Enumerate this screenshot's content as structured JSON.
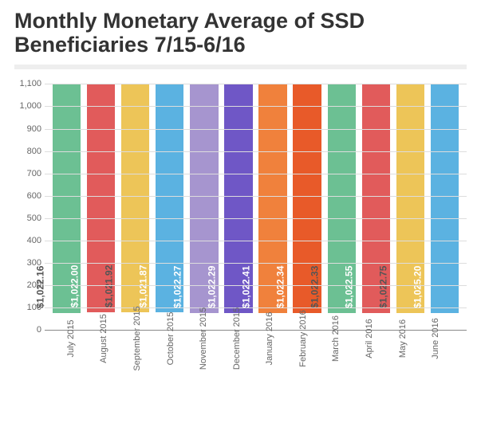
{
  "title": "Monthly Monetary Average of SSD Beneficiaries 7/15-6/16",
  "title_fontsize": 27,
  "title_color": "#333333",
  "divider_color": "#eeeeee",
  "chart": {
    "type": "bar",
    "background_color": "#ffffff",
    "grid_color": "#dddddd",
    "axis_color": "#888888",
    "ylim": [
      0,
      1100
    ],
    "ytick_step": 100,
    "yticks": [
      "0",
      "100",
      "200",
      "300",
      "400",
      "500",
      "600",
      "700",
      "800",
      "900",
      "1,000",
      "1,100"
    ],
    "ytick_fontsize": 11,
    "ytick_color": "#666666",
    "xlabel_fontsize": 11,
    "xlabel_color": "#666666",
    "bar_label_fontsize": 12,
    "bar_width": 0.82,
    "categories": [
      "July 2015",
      "August 2015",
      "September 2015",
      "October 2015",
      "November 2015",
      "December 2015",
      "January 2016",
      "February 2016",
      "March 2016",
      "April 2016",
      "May 2016",
      "June 2016"
    ],
    "values": [
      1022.16,
      1022.0,
      1021.92,
      1021.87,
      1022.27,
      1022.29,
      1022.41,
      1022.34,
      1022.33,
      1022.55,
      1022.75,
      1025.2
    ],
    "value_labels": [
      "$1,022.16",
      "$1,022.00",
      "$1,021.92",
      "$1,021.87",
      "$1,022.27",
      "$1,022.29",
      "$1,022.41",
      "$1,022.34",
      "$1,022.33",
      "$1,022.55",
      "$1,022.75",
      "$1,025.20"
    ],
    "bar_colors": [
      "#6cc093",
      "#e15b5b",
      "#edc558",
      "#5bb2e1",
      "#a695cf",
      "#6f57c6",
      "#f0813c",
      "#e85a29",
      "#6cc093",
      "#e15b5b",
      "#edc558",
      "#5bb2e1"
    ],
    "label_text_colors": [
      "#555555",
      "#ffffff",
      "#555555",
      "#ffffff",
      "#ffffff",
      "#ffffff",
      "#ffffff",
      "#ffffff",
      "#555555",
      "#ffffff",
      "#555555",
      "#ffffff"
    ]
  }
}
